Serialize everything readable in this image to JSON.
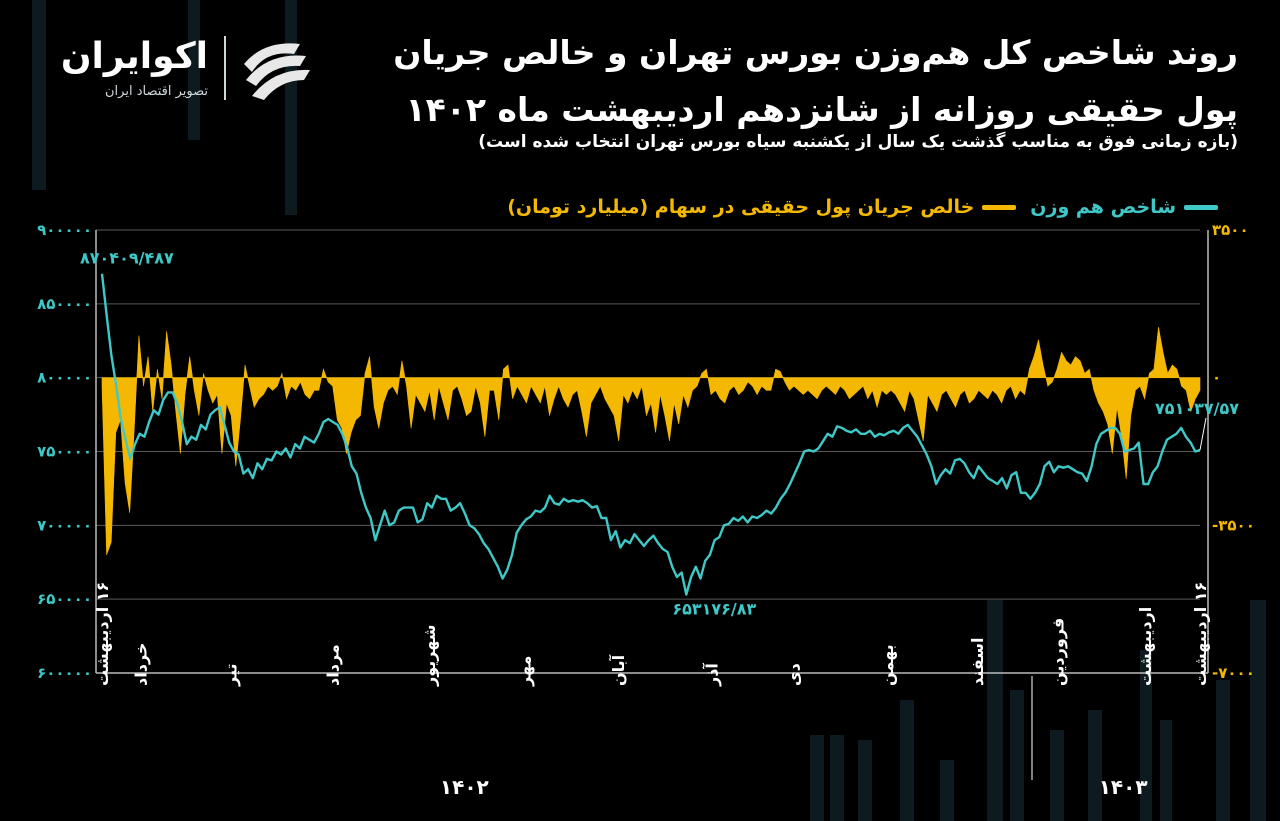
{
  "brand": {
    "name": "اکوایران",
    "tagline": "تصویر اقتصاد ایران"
  },
  "header": {
    "title": "روند شاخص کل هم‌وزن بورس تهران و خالص جریان پول حقیقی روزانه از شانزدهم اردیبهشت ماه ۱۴۰۲",
    "subtitle": "(بازه زمانی فوق به مناسب گذشت یک سال از یکشنبه سیاه بورس تهران انتخاب شده است)"
  },
  "colors": {
    "index_line": "#3fc8c8",
    "flow_area": "#f5b800",
    "background": "#000000",
    "grid": "#5a5a5a"
  },
  "chart_data": {
    "type": "line",
    "series": [
      {
        "name": "شاخص هم وزن",
        "axis": "left",
        "style": "line",
        "values": [
          870409.487,
          842000,
          815000,
          795000,
          772000,
          758000,
          745000,
          755000,
          762000,
          760000,
          770000,
          778000,
          775000,
          785000,
          790000,
          790000,
          782000,
          770000,
          755000,
          760000,
          758000,
          768000,
          765000,
          775000,
          778000,
          780000,
          768000,
          756000,
          750000,
          748000,
          735000,
          738000,
          732000,
          742000,
          738000,
          745000,
          744000,
          750000,
          748000,
          752000,
          746000,
          755000,
          752000,
          760000,
          758000,
          756000,
          762000,
          770000,
          772000,
          770000,
          768000,
          762000,
          753000,
          740000,
          735000,
          722000,
          712000,
          705000,
          690000,
          700000,
          710000,
          700000,
          702000,
          710000,
          712000,
          712000,
          712000,
          702000,
          704000,
          715000,
          712000,
          720000,
          718000,
          718000,
          710000,
          712000,
          715000,
          708000,
          700000,
          698000,
          694000,
          688000,
          684000,
          678000,
          672000,
          664000,
          670000,
          680000,
          695000,
          700000,
          704000,
          706000,
          710000,
          709000,
          712000,
          720000,
          715000,
          714000,
          718000,
          716000,
          717000,
          716000,
          717000,
          715000,
          712000,
          713000,
          705000,
          705000,
          690000,
          696000,
          685000,
          690000,
          688000,
          694000,
          690000,
          686000,
          690000,
          693000,
          688000,
          684000,
          682000,
          672000,
          665000,
          668000,
          653176.83,
          665000,
          672000,
          664000,
          676000,
          680000,
          690000,
          692000,
          700000,
          701000,
          705000,
          703000,
          706000,
          702000,
          706000,
          705000,
          707000,
          710000,
          708000,
          712000,
          718000,
          722000,
          728000,
          735000,
          742000,
          750000,
          751000,
          750000,
          752000,
          757000,
          762000,
          760000,
          767000,
          766000,
          764000,
          763000,
          765000,
          762000,
          762000,
          764000,
          760000,
          762000,
          761000,
          763000,
          764000,
          762000,
          766000,
          768000,
          764000,
          760000,
          754000,
          748000,
          740000,
          728000,
          734000,
          738000,
          735000,
          744000,
          745000,
          742000,
          736000,
          732000,
          740000,
          736000,
          732000,
          730000,
          728000,
          732000,
          725000,
          734000,
          736000,
          722000,
          722000,
          718000,
          722000,
          728000,
          740000,
          743000,
          736000,
          740000,
          739000,
          740000,
          738000,
          736000,
          735000,
          730000,
          740000,
          755000,
          762000,
          764000,
          766000,
          766000,
          762000,
          750000,
          751000,
          752000,
          756000,
          728000,
          728000,
          736000,
          740000,
          750000,
          758000,
          760000,
          762000,
          766000,
          760000,
          756000,
          750000,
          751037.57
        ]
      },
      {
        "name": "خالص جریان پول حقیقی در سهام (میلیارد تومان)",
        "axis": "right",
        "style": "area",
        "values": [
          -200,
          -4200,
          -3900,
          -1300,
          -1000,
          -2500,
          -3200,
          -1200,
          1000,
          -200,
          500,
          -800,
          200,
          -500,
          1100,
          300,
          -800,
          -1800,
          -400,
          500,
          -300,
          -900,
          100,
          -300,
          -600,
          -400,
          -1800,
          -600,
          -900,
          -2100,
          -1000,
          300,
          -200,
          -700,
          -500,
          -400,
          -200,
          -300,
          -200,
          100,
          -500,
          -200,
          -300,
          -100,
          -400,
          -500,
          -300,
          -300,
          200,
          -100,
          -200,
          -1000,
          -1200,
          -1800,
          -1300,
          -1000,
          -900,
          100,
          500,
          -700,
          -1200,
          -600,
          -300,
          -200,
          -400,
          400,
          -200,
          -1200,
          -400,
          -600,
          -800,
          -300,
          -1000,
          -200,
          -600,
          -1000,
          -300,
          -200,
          -500,
          -900,
          -800,
          -200,
          -600,
          -1400,
          -300,
          -300,
          -1000,
          200,
          300,
          -500,
          -200,
          -400,
          -600,
          -200,
          -400,
          -600,
          -200,
          -900,
          -500,
          -200,
          -500,
          -700,
          -400,
          -300,
          -800,
          -1400,
          -600,
          -400,
          -200,
          -500,
          -700,
          -900,
          -1500,
          -400,
          -600,
          -300,
          -500,
          -200,
          -900,
          -600,
          -1300,
          -400,
          -900,
          -1500,
          -600,
          -1100,
          -400,
          -700,
          -300,
          -200,
          100,
          200,
          -400,
          -300,
          -500,
          -600,
          -300,
          -200,
          -400,
          -300,
          -100,
          -200,
          -400,
          -200,
          -300,
          -300,
          200,
          150,
          -100,
          -300,
          -200,
          -300,
          -400,
          -300,
          -400,
          -500,
          -300,
          -200,
          -300,
          -400,
          -200,
          -300,
          -500,
          -400,
          -300,
          -200,
          -500,
          -300,
          -700,
          -300,
          -400,
          -300,
          -400,
          -600,
          -800,
          -300,
          -500,
          -1000,
          -1500,
          -400,
          -600,
          -800,
          -400,
          -300,
          -500,
          -700,
          -400,
          -300,
          -600,
          -500,
          -300,
          -400,
          -500,
          -300,
          -400,
          -600,
          -300,
          -200,
          -500,
          -300,
          -400,
          200,
          500,
          900,
          300,
          -200,
          -100,
          200,
          600,
          400,
          300,
          500,
          400,
          100,
          200,
          -300,
          -600,
          -800,
          -1100,
          -1800,
          -700,
          -1400,
          -2400,
          -900,
          -300,
          -200,
          -500,
          100,
          200,
          1200,
          600,
          100,
          300,
          200,
          -200,
          -300,
          -800,
          -500,
          -300
        ]
      }
    ],
    "left_axis": {
      "ylim": [
        600000,
        900000
      ],
      "ticks": [
        "600000",
        "650000",
        "700000",
        "750000",
        "800000",
        "850000",
        "900000"
      ]
    },
    "right_axis": {
      "ylim": [
        -7000,
        3500
      ],
      "ticks": [
        "3500",
        "0",
        "-3500",
        "-7000"
      ],
      "tick_labels": [
        "۳۵۰۰",
        "۰",
        "-۳۵۰۰",
        "-۷۰۰۰"
      ]
    },
    "left_tick_labels": [
      "۶۰۰۰۰۰",
      "۶۵۰۰۰۰",
      "۷۰۰۰۰۰",
      "۷۵۰۰۰۰",
      "۸۰۰۰۰۰",
      "۸۵۰۰۰۰",
      "۹۰۰۰۰۰"
    ],
    "month_labels": [
      {
        "label": "۱۶ اردیبهشت",
        "pos": 0.0
      },
      {
        "label": "خرداد",
        "pos": 0.035
      },
      {
        "label": "تیر",
        "pos": 0.117
      },
      {
        "label": "مرداد",
        "pos": 0.21
      },
      {
        "label": "شهریور",
        "pos": 0.298
      },
      {
        "label": "مهر",
        "pos": 0.385
      },
      {
        "label": "آبان",
        "pos": 0.47
      },
      {
        "label": "آذر",
        "pos": 0.555
      },
      {
        "label": "دی",
        "pos": 0.63
      },
      {
        "label": "بهمن",
        "pos": 0.715
      },
      {
        "label": "اسفند",
        "pos": 0.797
      },
      {
        "label": "فروردین",
        "pos": 0.87
      },
      {
        "label": "اردیبهشت",
        "pos": 0.95
      },
      {
        "label": "۱۶ اردیبهشت",
        "pos": 1.0
      }
    ],
    "year_labels": [
      {
        "label": "۱۴۰۲",
        "pos": 0.33
      },
      {
        "label": "۱۴۰۳",
        "pos": 0.93
      }
    ],
    "year_divider_pos": 0.847,
    "annotations": [
      {
        "label": "۸۷۰۴۰۹/۴۸۷",
        "series": 0,
        "at": "max"
      },
      {
        "label": "۶۵۳۱۷۶/۸۳",
        "series": 0,
        "at": "min"
      },
      {
        "label": "۷۵۱۰۳۷/۵۷",
        "series": 0,
        "at": "last"
      }
    ],
    "grid": true,
    "legend_position": "top-right"
  }
}
